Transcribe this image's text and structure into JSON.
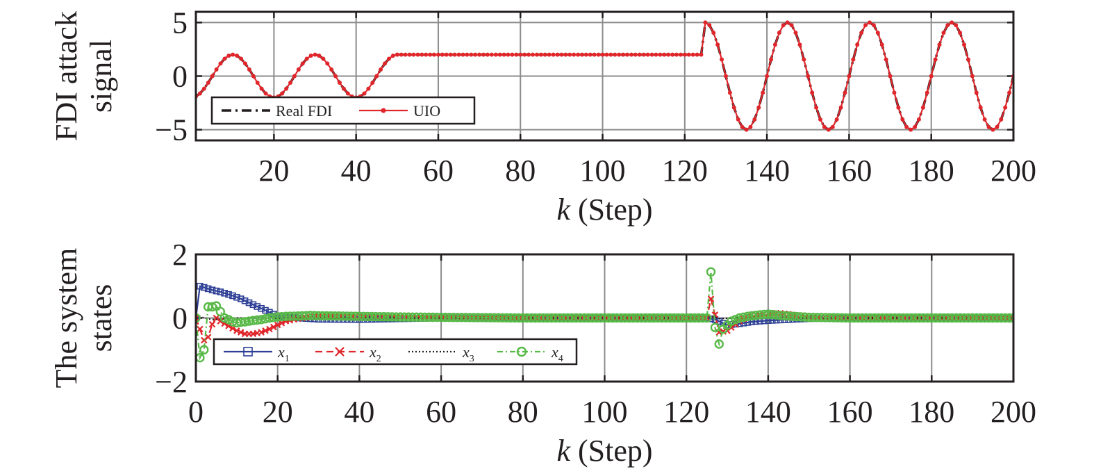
{
  "chart_data": [
    {
      "type": "line",
      "ylabel": [
        "FDI attack",
        "signal"
      ],
      "xlabel_var": "k",
      "xlabel_rest": " (Step)",
      "xlim": [
        1,
        200
      ],
      "ylim": [
        -6,
        6
      ],
      "xticks": [
        20,
        40,
        60,
        80,
        100,
        120,
        140,
        160,
        180,
        200
      ],
      "xtick_labels": [
        "20",
        "40",
        "60",
        "80",
        "100",
        "120",
        "140",
        "160",
        "180",
        "200"
      ],
      "yticks": [
        -5,
        0,
        5
      ],
      "ytick_labels": [
        "−5",
        "0",
        "5"
      ],
      "grid": true,
      "legend_position": "bottom-left",
      "series": [
        {
          "name": "Real FDI",
          "color": "#231f20",
          "style": "dash-dot",
          "marker": "none",
          "segments": [
            {
              "from": 1,
              "to": 50,
              "rule": "sin",
              "amplitude": 2,
              "period": 20,
              "phase_start": 5
            },
            {
              "from": 50,
              "to": 124,
              "rule": "const",
              "value": 2
            },
            {
              "from": 125,
              "to": 200,
              "rule": "sin",
              "amplitude": 5,
              "period": 20,
              "phase_start": 120
            }
          ]
        },
        {
          "name": "UIO",
          "color": "#e0262b",
          "style": "solid",
          "marker": "dot",
          "segments": [
            {
              "from": 1,
              "to": 50,
              "rule": "sin",
              "amplitude": 2,
              "period": 20,
              "phase_start": 5
            },
            {
              "from": 50,
              "to": 124,
              "rule": "const",
              "value": 2
            },
            {
              "from": 125,
              "to": 200,
              "rule": "sin",
              "amplitude": 5,
              "period": 20,
              "phase_start": 120
            }
          ]
        }
      ]
    },
    {
      "type": "line",
      "ylabel": [
        "The system",
        "states"
      ],
      "xlabel_var": "k",
      "xlabel_rest": " (Step)",
      "xlim": [
        0,
        200
      ],
      "ylim": [
        -2,
        2
      ],
      "xticks": [
        0,
        20,
        40,
        60,
        80,
        100,
        120,
        140,
        160,
        180,
        200
      ],
      "xtick_labels": [
        "0",
        "20",
        "40",
        "60",
        "80",
        "100",
        "120",
        "140",
        "160",
        "180",
        "200"
      ],
      "yticks": [
        -2,
        0,
        2
      ],
      "ytick_labels": [
        "−2",
        "0",
        "2"
      ],
      "grid": true,
      "legend_position": "bottom-left",
      "series": [
        {
          "name": "x",
          "subscript": "1",
          "color": "#2d3f95",
          "style": "solid",
          "marker": "square",
          "points": [
            [
              0,
              0
            ],
            [
              1,
              1
            ],
            [
              2,
              0.96
            ],
            [
              3,
              0.92
            ],
            [
              4,
              0.88
            ],
            [
              5,
              0.85
            ],
            [
              6,
              0.82
            ],
            [
              7,
              0.78
            ],
            [
              8,
              0.74
            ],
            [
              9,
              0.7
            ],
            [
              10,
              0.65
            ],
            [
              11,
              0.6
            ],
            [
              12,
              0.54
            ],
            [
              13,
              0.48
            ],
            [
              14,
              0.42
            ],
            [
              15,
              0.36
            ],
            [
              16,
              0.3
            ],
            [
              17,
              0.24
            ],
            [
              18,
              0.18
            ],
            [
              19,
              0.12
            ],
            [
              20,
              0.07
            ],
            [
              22,
              0.03
            ],
            [
              25,
              0.0
            ],
            [
              30,
              -0.04
            ],
            [
              40,
              -0.05
            ],
            [
              60,
              0.0
            ],
            [
              80,
              0.0
            ],
            [
              100,
              0.0
            ],
            [
              120,
              0.0
            ],
            [
              125,
              0.0
            ],
            [
              127,
              -0.05
            ],
            [
              130,
              -0.22
            ],
            [
              133,
              -0.18
            ],
            [
              136,
              -0.12
            ],
            [
              140,
              -0.08
            ],
            [
              145,
              -0.05
            ],
            [
              150,
              -0.02
            ],
            [
              160,
              0.0
            ],
            [
              180,
              0.0
            ],
            [
              200,
              0.0
            ]
          ]
        },
        {
          "name": "x",
          "subscript": "2",
          "color": "#e0262b",
          "style": "dash",
          "marker": "cross",
          "points": [
            [
              0,
              0
            ],
            [
              1,
              -0.35
            ],
            [
              2,
              -0.7
            ],
            [
              3,
              -0.6
            ],
            [
              4,
              -0.2
            ],
            [
              5,
              0.0
            ],
            [
              6,
              -0.1
            ],
            [
              8,
              -0.25
            ],
            [
              10,
              -0.4
            ],
            [
              12,
              -0.5
            ],
            [
              14,
              -0.5
            ],
            [
              16,
              -0.45
            ],
            [
              18,
              -0.35
            ],
            [
              20,
              -0.22
            ],
            [
              22,
              -0.1
            ],
            [
              25,
              -0.02
            ],
            [
              30,
              0.05
            ],
            [
              40,
              0.05
            ],
            [
              60,
              0.0
            ],
            [
              80,
              0.0
            ],
            [
              100,
              0.0
            ],
            [
              120,
              0.0
            ],
            [
              125,
              0.0
            ],
            [
              126,
              0.6
            ],
            [
              127,
              0.1
            ],
            [
              128,
              -0.45
            ],
            [
              130,
              -0.4
            ],
            [
              133,
              -0.1
            ],
            [
              136,
              0.1
            ],
            [
              140,
              0.15
            ],
            [
              143,
              0.15
            ],
            [
              146,
              0.1
            ],
            [
              150,
              0.04
            ],
            [
              160,
              0.0
            ],
            [
              180,
              0.0
            ],
            [
              200,
              0.0
            ]
          ]
        },
        {
          "name": "x",
          "subscript": "3",
          "color": "#231f20",
          "style": "dot",
          "marker": "none",
          "points": [
            [
              0,
              0
            ],
            [
              1,
              0.05
            ],
            [
              2,
              0.0
            ],
            [
              4,
              -0.05
            ],
            [
              10,
              0.0
            ],
            [
              20,
              0.0
            ],
            [
              60,
              0.0
            ],
            [
              100,
              0.0
            ],
            [
              125,
              0.0
            ],
            [
              126,
              0.05
            ],
            [
              128,
              -0.02
            ],
            [
              132,
              0.0
            ],
            [
              160,
              0.0
            ],
            [
              200,
              0.0
            ]
          ]
        },
        {
          "name": "x",
          "subscript": "4",
          "color": "#58b947",
          "style": "dashdot",
          "marker": "circle",
          "points": [
            [
              0,
              0
            ],
            [
              1,
              -1.25
            ],
            [
              2,
              -1.0
            ],
            [
              3,
              0.35
            ],
            [
              4,
              0.35
            ],
            [
              5,
              0.38
            ],
            [
              6,
              0.2
            ],
            [
              7,
              0.0
            ],
            [
              8,
              -0.05
            ],
            [
              9,
              -0.12
            ],
            [
              10,
              -0.15
            ],
            [
              12,
              -0.12
            ],
            [
              14,
              -0.08
            ],
            [
              16,
              -0.05
            ],
            [
              18,
              0.0
            ],
            [
              20,
              0.03
            ],
            [
              22,
              0.05
            ],
            [
              25,
              0.06
            ],
            [
              28,
              0.08
            ],
            [
              30,
              0.07
            ],
            [
              35,
              0.06
            ],
            [
              40,
              0.05
            ],
            [
              50,
              0.03
            ],
            [
              60,
              0.02
            ],
            [
              80,
              0.0
            ],
            [
              100,
              0.0
            ],
            [
              120,
              0.0
            ],
            [
              125,
              0.0
            ],
            [
              126,
              1.45
            ],
            [
              127,
              -0.3
            ],
            [
              128,
              -0.82
            ],
            [
              129,
              -0.35
            ],
            [
              131,
              -0.1
            ],
            [
              133,
              0.0
            ],
            [
              135,
              0.05
            ],
            [
              138,
              0.1
            ],
            [
              140,
              0.12
            ],
            [
              143,
              0.08
            ],
            [
              146,
              0.05
            ],
            [
              150,
              0.02
            ],
            [
              160,
              0.0
            ],
            [
              180,
              0.0
            ],
            [
              200,
              0.0
            ]
          ]
        }
      ]
    }
  ]
}
